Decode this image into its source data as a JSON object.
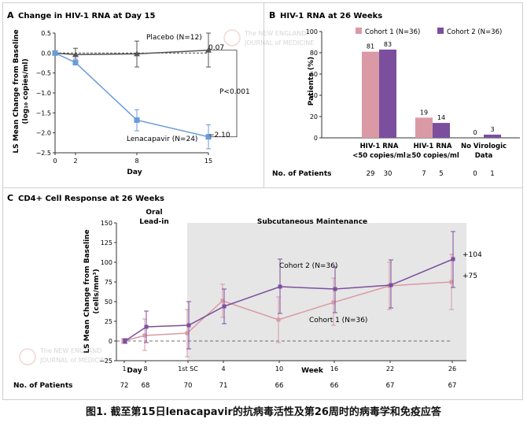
{
  "panel_a": {
    "letter": "A",
    "title": "Change in HIV-1 RNA at Day 15",
    "ylabel_line1": "LS Mean Change from Baseline",
    "ylabel_line2": "(log₁₀ copies/ml)",
    "xlabel": "Day",
    "placebo_label": "Placebo (N=12)",
    "placebo_end": "0.07",
    "len_label": "Lenacapavir (N=24)",
    "len_end": "−2.10",
    "pvalue": "P<0.001"
  },
  "panel_b": {
    "letter": "B",
    "title": "HIV-1 RNA at 26 Weeks",
    "ylabel": "Patients (%)",
    "npatients_label": "No. of Patients",
    "category_labels": [
      [
        "HIV-1 RNA",
        "<50 copies/ml"
      ],
      [
        "HIV-1 RNA",
        "≥50 copies/ml"
      ],
      [
        "No Virologic",
        "Data"
      ]
    ],
    "npatients": [
      [
        "29",
        "30"
      ],
      [
        "7",
        "5"
      ],
      [
        "0",
        "1"
      ]
    ]
  },
  "panel_c": {
    "letter": "C",
    "title": "CD4+ Cell Response at 26 Weeks",
    "ylabel_line1": "LS Mean Change from Baseline",
    "ylabel_line2": "(cells/mm³)",
    "phase1_line1": "Oral",
    "phase1_line2": "Lead-in",
    "phase2": "Subcutaneous Maintenance",
    "cohort2_label": "Cohort 2 (N=36)",
    "cohort1_label": "Cohort 1 (N=36)",
    "cohort2_end": "+104",
    "cohort1_end": "+75",
    "xlabel_day": "Day",
    "xlabel_week": "Week",
    "npatients_label": "No. of Patients",
    "npatients": [
      "72",
      "68",
      "70",
      "71",
      "66",
      "66",
      "67",
      "67"
    ]
  },
  "watermark": {
    "line1": "The NEW ENGLAND",
    "line2": "JOURNAL of MEDICINE"
  },
  "caption": "图1. 截至第15日lenacapavir的抗病毒活性及第26周时的病毒学和免疫应答",
  "colors": {
    "placebo": "#555555",
    "lenacapavir": "#6a9bd8",
    "cohort1": "#d99aa6",
    "cohort2": "#7b4f9e",
    "shade": "#e6e6e6"
  },
  "chart_data": [
    {
      "type": "line",
      "title": "Change in HIV-1 RNA at Day 15",
      "xlabel": "Day",
      "ylabel": "LS Mean Change from Baseline (log10 copies/ml)",
      "x_ticks": [
        0,
        2,
        8,
        15
      ],
      "ylim": [
        -2.5,
        0.5
      ],
      "series": [
        {
          "name": "Placebo (N=12)",
          "x": [
            0,
            2,
            8,
            15
          ],
          "y": [
            0.0,
            -0.04,
            -0.02,
            0.07
          ],
          "err_low": [
            0.0,
            -0.2,
            -0.35,
            -0.35
          ],
          "err_high": [
            0.0,
            0.12,
            0.3,
            0.5
          ]
        },
        {
          "name": "Lenacapavir (N=24)",
          "x": [
            0,
            2,
            8,
            15
          ],
          "y": [
            0.0,
            -0.24,
            -1.68,
            -2.1
          ],
          "err_low": [
            0.0,
            -0.3,
            -1.95,
            -2.4
          ],
          "err_high": [
            0.0,
            -0.15,
            -1.42,
            -1.8
          ]
        }
      ],
      "annotation": "P<0.001"
    },
    {
      "type": "bar",
      "title": "HIV-1 RNA at 26 Weeks",
      "ylabel": "Patients (%)",
      "ylim": [
        0,
        100
      ],
      "categories": [
        "HIV-1 RNA <50 copies/ml",
        "HIV-1 RNA ≥50 copies/ml",
        "No Virologic Data"
      ],
      "series": [
        {
          "name": "Cohort 1 (N=36)",
          "values": [
            81,
            19,
            0
          ]
        },
        {
          "name": "Cohort 2 (N=36)",
          "values": [
            83,
            14,
            3
          ]
        }
      ]
    },
    {
      "type": "line",
      "title": "CD4+ Cell Response at 26 Weeks",
      "ylabel": "LS Mean Change from Baseline (cells/mm³)",
      "ylim": [
        -25,
        150
      ],
      "x_ticks": [
        "1",
        "8",
        "1st SC",
        "4",
        "10",
        "16",
        "22",
        "26"
      ],
      "series": [
        {
          "name": "Cohort 1 (N=36)",
          "values": [
            0,
            7,
            10,
            51,
            27,
            49,
            70,
            75
          ],
          "err_low": [
            -3,
            -12,
            -20,
            30,
            -2,
            20,
            40,
            40
          ],
          "err_high": [
            3,
            28,
            40,
            72,
            56,
            80,
            100,
            110
          ]
        },
        {
          "name": "Cohort 2 (N=36)",
          "values": [
            0,
            18,
            20,
            44,
            69,
            66,
            71,
            104
          ],
          "err_low": [
            -3,
            -2,
            -10,
            22,
            35,
            36,
            42,
            68
          ],
          "err_high": [
            3,
            38,
            50,
            66,
            104,
            94,
            103,
            139
          ]
        }
      ]
    }
  ]
}
